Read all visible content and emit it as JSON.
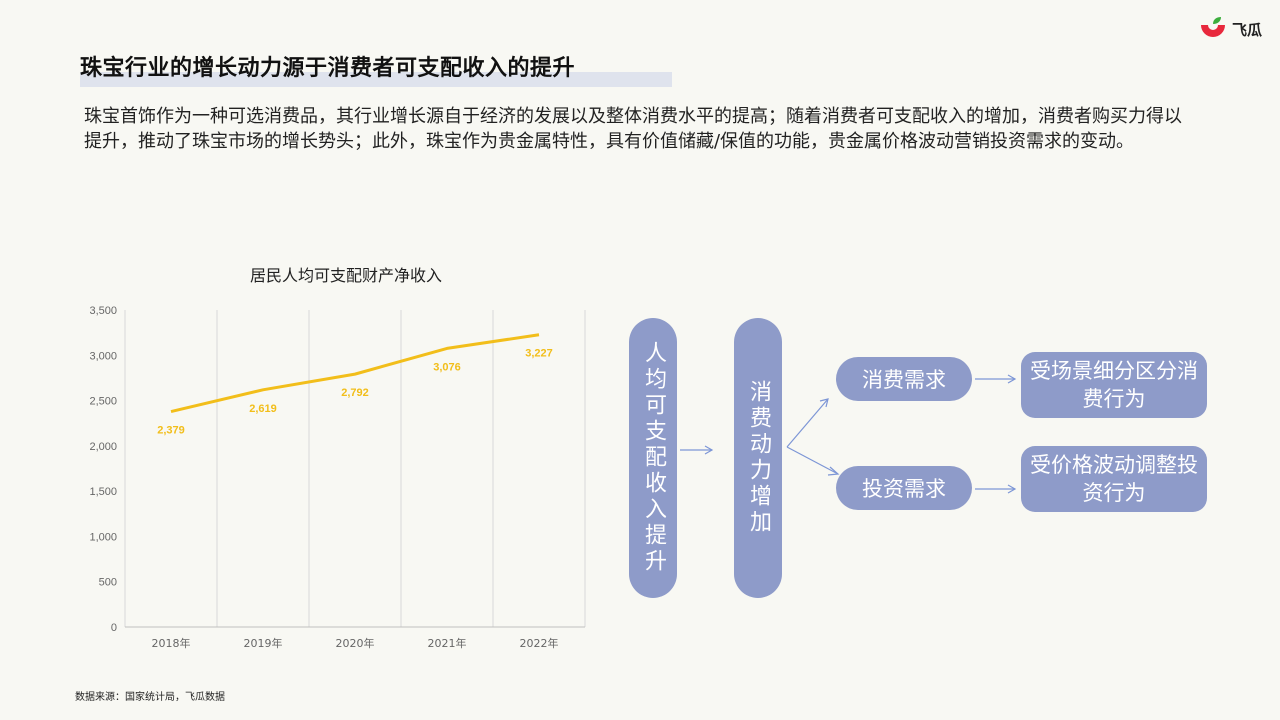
{
  "page": {
    "title": "珠宝行业的增长动力源于消费者可支配收入的提升",
    "intro": "珠宝首饰作为一种可选消费品，其行业增长源自于经济的发展以及整体消费水平的提高；随着消费者可支配收入的增加，消费者购买力得以提升，推动了珠宝市场的增长势头；此外，珠宝作为贵金属特性，具有价值储藏/保值的功能，贵金属价格波动营销投资需求的变动。",
    "footnote": "数据来源：国家统计局，飞瓜数据"
  },
  "logo": {
    "text": "飞瓜",
    "icon": "feigua-logo-icon",
    "colors": [
      "#e8283c",
      "#3cae3c"
    ]
  },
  "chart_data": {
    "type": "line",
    "title": "居民人均可支配财产净收入",
    "categories": [
      "2018年",
      "2019年",
      "2020年",
      "2021年",
      "2022年"
    ],
    "series": [
      {
        "values": [
          2379,
          2619,
          2792,
          3076,
          3227
        ],
        "labels": [
          "2,379",
          "2,619",
          "2,792",
          "3,076",
          "3,227"
        ],
        "color": "#f2be1a"
      }
    ],
    "ylim": [
      0,
      3500
    ],
    "yticks": [
      0,
      500,
      1000,
      1500,
      2000,
      2500,
      3000,
      3500
    ],
    "ytick_labels": [
      "0",
      "500",
      "1,000",
      "1,500",
      "2,000",
      "2,500",
      "3,000",
      "3,500"
    ],
    "grid": "vertical",
    "xlabel": "",
    "ylabel": ""
  },
  "flow": {
    "source": "人均可支配收入提升",
    "driver": "消费动力增加",
    "demands": [
      "消费需求",
      "投资需求"
    ],
    "outcomes": [
      "受场景细分区分消费行为",
      "受价格波动调整投资行为"
    ],
    "color": "#8e9bc9",
    "arrow_color": "#7d96d6"
  }
}
